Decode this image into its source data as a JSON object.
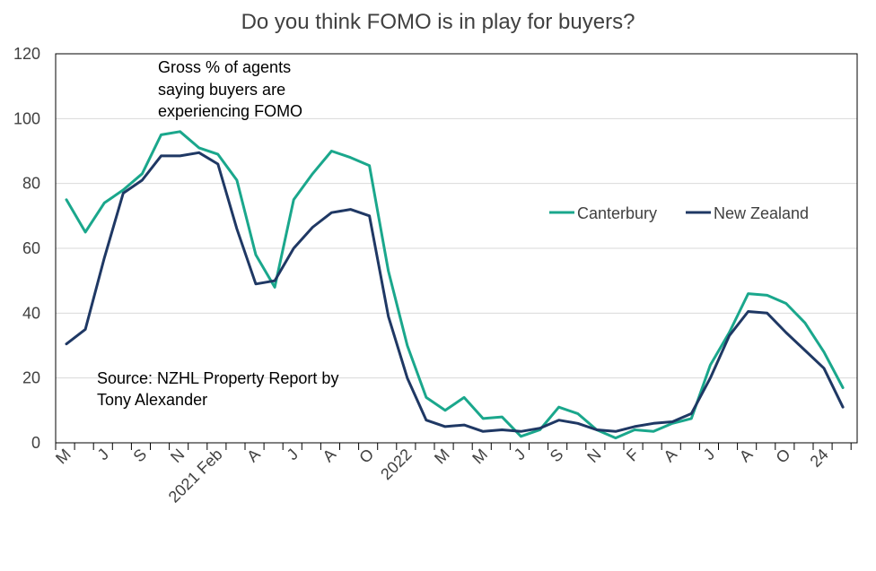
{
  "chart_data": {
    "type": "line",
    "title": "Do you think FOMO is in play for buyers?",
    "xlabel": "",
    "ylabel": "",
    "ylim": [
      0,
      120
    ],
    "yticks": [
      0,
      20,
      40,
      60,
      80,
      100,
      120
    ],
    "grid": true,
    "legend_position": "center-right",
    "x_tick_labels": [
      "M",
      "J",
      "S",
      "N",
      "2021 Feb",
      "A",
      "J",
      "A",
      "O",
      "2022",
      "M",
      "M",
      "J",
      "S",
      "N",
      "F",
      "A",
      "J",
      "A",
      "O",
      "24"
    ],
    "series": [
      {
        "name": "Canterbury",
        "color": "#1aa78c",
        "values": [
          75,
          65,
          74,
          78,
          83,
          95,
          96,
          91,
          89,
          81,
          58,
          48,
          75,
          83,
          90,
          88,
          85.5,
          53,
          30,
          14,
          10,
          14,
          7.5,
          8,
          2,
          4,
          11,
          9,
          4,
          1.5,
          4,
          3.5,
          6,
          7.5,
          24,
          34,
          46,
          45.5,
          43,
          37,
          28,
          17
        ]
      },
      {
        "name": "New Zealand",
        "color": "#1f3864",
        "values": [
          30.5,
          35,
          57,
          77,
          81,
          88.5,
          88.5,
          89.5,
          86,
          66,
          49,
          50,
          60,
          66.5,
          71,
          72,
          70,
          39,
          20,
          7,
          5,
          5.5,
          3.5,
          4,
          3.5,
          4.5,
          7,
          6,
          4,
          3.5,
          5,
          6,
          6.5,
          9,
          20,
          33,
          40.5,
          40,
          34,
          28.5,
          23,
          11
        ]
      }
    ],
    "annotations": [
      "Gross % of agents",
      "saying buyers are",
      "experiencing FOMO",
      "Source: NZHL Property Report by",
      "Tony Alexander"
    ]
  }
}
